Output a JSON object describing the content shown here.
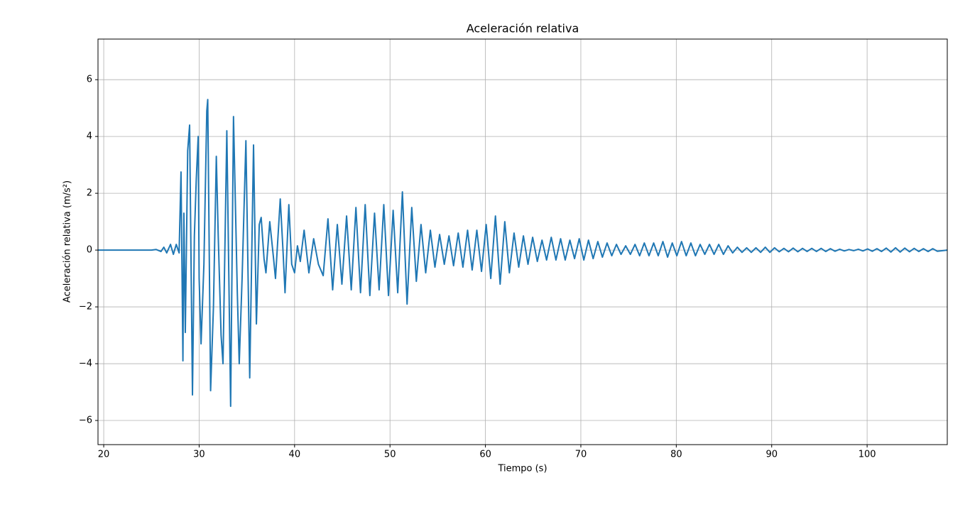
{
  "chart_data": {
    "type": "line",
    "title": "Aceleración relativa",
    "xlabel": "Tiempo (s)",
    "ylabel": "Aceleración relativa (m/s²)",
    "xlim": [
      19.4,
      108.4
    ],
    "ylim": [
      -6.85,
      7.43
    ],
    "xticks": [
      20,
      30,
      40,
      50,
      60,
      70,
      80,
      90,
      100
    ],
    "yticks": [
      {
        "value": -6,
        "label": "−6"
      },
      {
        "value": -4,
        "label": "−4"
      },
      {
        "value": -2,
        "label": "−2"
      },
      0,
      2,
      4,
      6
    ],
    "grid": true,
    "x": [
      19.4,
      25,
      25.5,
      26,
      26.3,
      26.6,
      27,
      27.3,
      27.6,
      27.9,
      28.1,
      28.3,
      28.4,
      28.55,
      28.8,
      29.0,
      29.3,
      29.5,
      29.7,
      29.9,
      30.0,
      30.2,
      30.5,
      30.8,
      30.9,
      31.2,
      31.5,
      31.8,
      32.0,
      32.3,
      32.5,
      32.9,
      33.3,
      33.6,
      34.0,
      34.2,
      34.5,
      34.9,
      35.3,
      35.7,
      36.0,
      36.3,
      36.5,
      36.8,
      37.0,
      37.4,
      37.8,
      38.0,
      38.5,
      38.8,
      39.0,
      39.4,
      39.7,
      40.0,
      40.3,
      40.6,
      41.0,
      41.5,
      42.0,
      42.5,
      43.0,
      43.5,
      43.99,
      44.48,
      44.96,
      45.45,
      45.94,
      46.43,
      46.91,
      47.4,
      47.89,
      48.38,
      48.86,
      49.35,
      49.84,
      50.33,
      50.81,
      51.3,
      51.79,
      52.28,
      52.76,
      53.25,
      53.74,
      54.23,
      54.71,
      55.2,
      55.69,
      56.18,
      56.66,
      57.15,
      57.64,
      58.13,
      58.61,
      59.1,
      59.59,
      60.08,
      60.56,
      61.05,
      61.54,
      62.03,
      62.51,
      63.0,
      63.49,
      63.98,
      64.46,
      64.95,
      65.44,
      65.93,
      66.41,
      66.9,
      67.39,
      67.88,
      68.36,
      68.85,
      69.34,
      69.83,
      70.31,
      70.8,
      71.29,
      71.78,
      72.26,
      72.75,
      73.24,
      73.73,
      74.21,
      74.7,
      75.19,
      75.68,
      76.16,
      76.65,
      77.14,
      77.63,
      78.11,
      78.6,
      79.09,
      79.58,
      80.06,
      80.55,
      81.04,
      81.53,
      82.01,
      82.5,
      82.99,
      83.48,
      83.96,
      84.45,
      84.94,
      85.43,
      85.91,
      86.4,
      86.89,
      87.38,
      87.86,
      88.35,
      88.84,
      89.33,
      89.81,
      90.3,
      90.79,
      91.28,
      91.76,
      92.25,
      92.74,
      93.23,
      93.71,
      94.2,
      94.69,
      95.18,
      95.66,
      96.15,
      96.64,
      97.13,
      97.61,
      98.1,
      98.59,
      99.08,
      99.56,
      100.05,
      100.54,
      101.03,
      101.51,
      102.0,
      102.49,
      102.98,
      103.46,
      103.95,
      104.44,
      104.93,
      105.41,
      105.9,
      106.39,
      106.88,
      107.36,
      108.4
    ],
    "series": [
      {
        "color": "#1f77b4",
        "values": [
          0,
          0,
          0.02,
          -0.05,
          0.1,
          -0.1,
          0.2,
          -0.15,
          0.2,
          -0.1,
          2.75,
          -3.9,
          1.3,
          -2.9,
          3.5,
          4.4,
          -5.1,
          0.5,
          2.5,
          4.0,
          -1.0,
          -3.3,
          -0.5,
          4.9,
          5.3,
          -4.95,
          -2.0,
          3.3,
          0.5,
          -3.0,
          -4.0,
          4.2,
          -5.5,
          4.7,
          -1.5,
          -4.0,
          -1.0,
          3.85,
          -4.5,
          3.7,
          -2.6,
          0.9,
          1.15,
          -0.3,
          -0.8,
          1.0,
          -0.3,
          -1.0,
          1.8,
          -0.1,
          -1.5,
          1.6,
          -0.5,
          -0.8,
          0.15,
          -0.4,
          0.7,
          -0.8,
          0.4,
          -0.5,
          -0.9,
          1.1,
          -1.4,
          0.9,
          -1.2,
          1.2,
          -1.4,
          1.5,
          -1.5,
          1.6,
          -1.6,
          1.3,
          -1.4,
          1.6,
          -1.6,
          1.4,
          -1.5,
          2.05,
          -1.9,
          1.5,
          -1.1,
          0.9,
          -0.8,
          0.7,
          -0.6,
          0.55,
          -0.5,
          0.5,
          -0.55,
          0.6,
          -0.6,
          0.7,
          -0.7,
          0.7,
          -0.75,
          0.9,
          -1.0,
          1.2,
          -1.2,
          1.0,
          -0.8,
          0.6,
          -0.6,
          0.5,
          -0.5,
          0.45,
          -0.4,
          0.35,
          -0.35,
          0.45,
          -0.35,
          0.4,
          -0.35,
          0.35,
          -0.3,
          0.4,
          -0.35,
          0.35,
          -0.3,
          0.3,
          -0.25,
          0.25,
          -0.2,
          0.2,
          -0.15,
          0.15,
          -0.15,
          0.2,
          -0.2,
          0.25,
          -0.2,
          0.25,
          -0.2,
          0.3,
          -0.25,
          0.25,
          -0.2,
          0.3,
          -0.2,
          0.25,
          -0.2,
          0.2,
          -0.15,
          0.2,
          -0.15,
          0.2,
          -0.15,
          0.15,
          -0.1,
          0.1,
          -0.08,
          0.08,
          -0.08,
          0.08,
          -0.08,
          0.1,
          -0.08,
          0.08,
          -0.06,
          0.06,
          -0.06,
          0.07,
          -0.06,
          0.06,
          -0.05,
          0.06,
          -0.05,
          0.06,
          -0.05,
          0.05,
          -0.04,
          0.03,
          -0.03,
          0.02,
          -0.02,
          0.03,
          -0.03,
          0.04,
          -0.04,
          0.05,
          -0.05,
          0.07,
          -0.07,
          0.08,
          -0.07,
          0.07,
          -0.06,
          0.06,
          -0.05,
          0.05,
          -0.05,
          0.05,
          -0.04,
          0
        ]
      }
    ]
  }
}
